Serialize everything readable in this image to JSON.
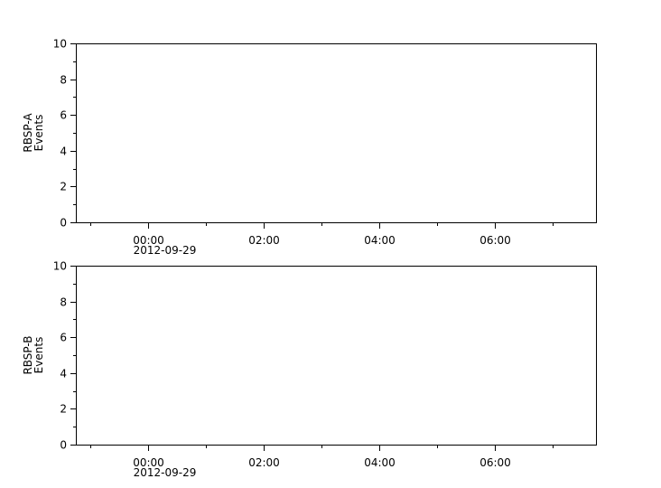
{
  "chart_data": [
    {
      "type": "line",
      "ylabel": [
        "RBSP-A",
        "Events"
      ],
      "ylim": [
        0,
        10
      ],
      "yticks": [
        "0",
        "2",
        "4",
        "6",
        "8",
        "10"
      ],
      "xlim_hours": [
        -1.25,
        7.75
      ],
      "xticks": [
        {
          "h": 0,
          "label": "00:00",
          "sub": "2012-09-29"
        },
        {
          "h": 2,
          "label": "02:00"
        },
        {
          "h": 4,
          "label": "04:00"
        },
        {
          "h": 6,
          "label": "06:00"
        }
      ],
      "x_minor_hours": [
        -1,
        1,
        3,
        5,
        7
      ],
      "series": [],
      "grid": false
    },
    {
      "type": "line",
      "ylabel": [
        "RBSP-B",
        "Events"
      ],
      "ylim": [
        0,
        10
      ],
      "yticks": [
        "0",
        "2",
        "4",
        "6",
        "8",
        "10"
      ],
      "xlim_hours": [
        -1.25,
        7.75
      ],
      "xticks": [
        {
          "h": 0,
          "label": "00:00",
          "sub": "2012-09-29"
        },
        {
          "h": 2,
          "label": "02:00"
        },
        {
          "h": 4,
          "label": "04:00"
        },
        {
          "h": 6,
          "label": "06:00"
        }
      ],
      "x_minor_hours": [
        -1,
        1,
        3,
        5,
        7
      ],
      "series": [],
      "grid": false
    }
  ]
}
